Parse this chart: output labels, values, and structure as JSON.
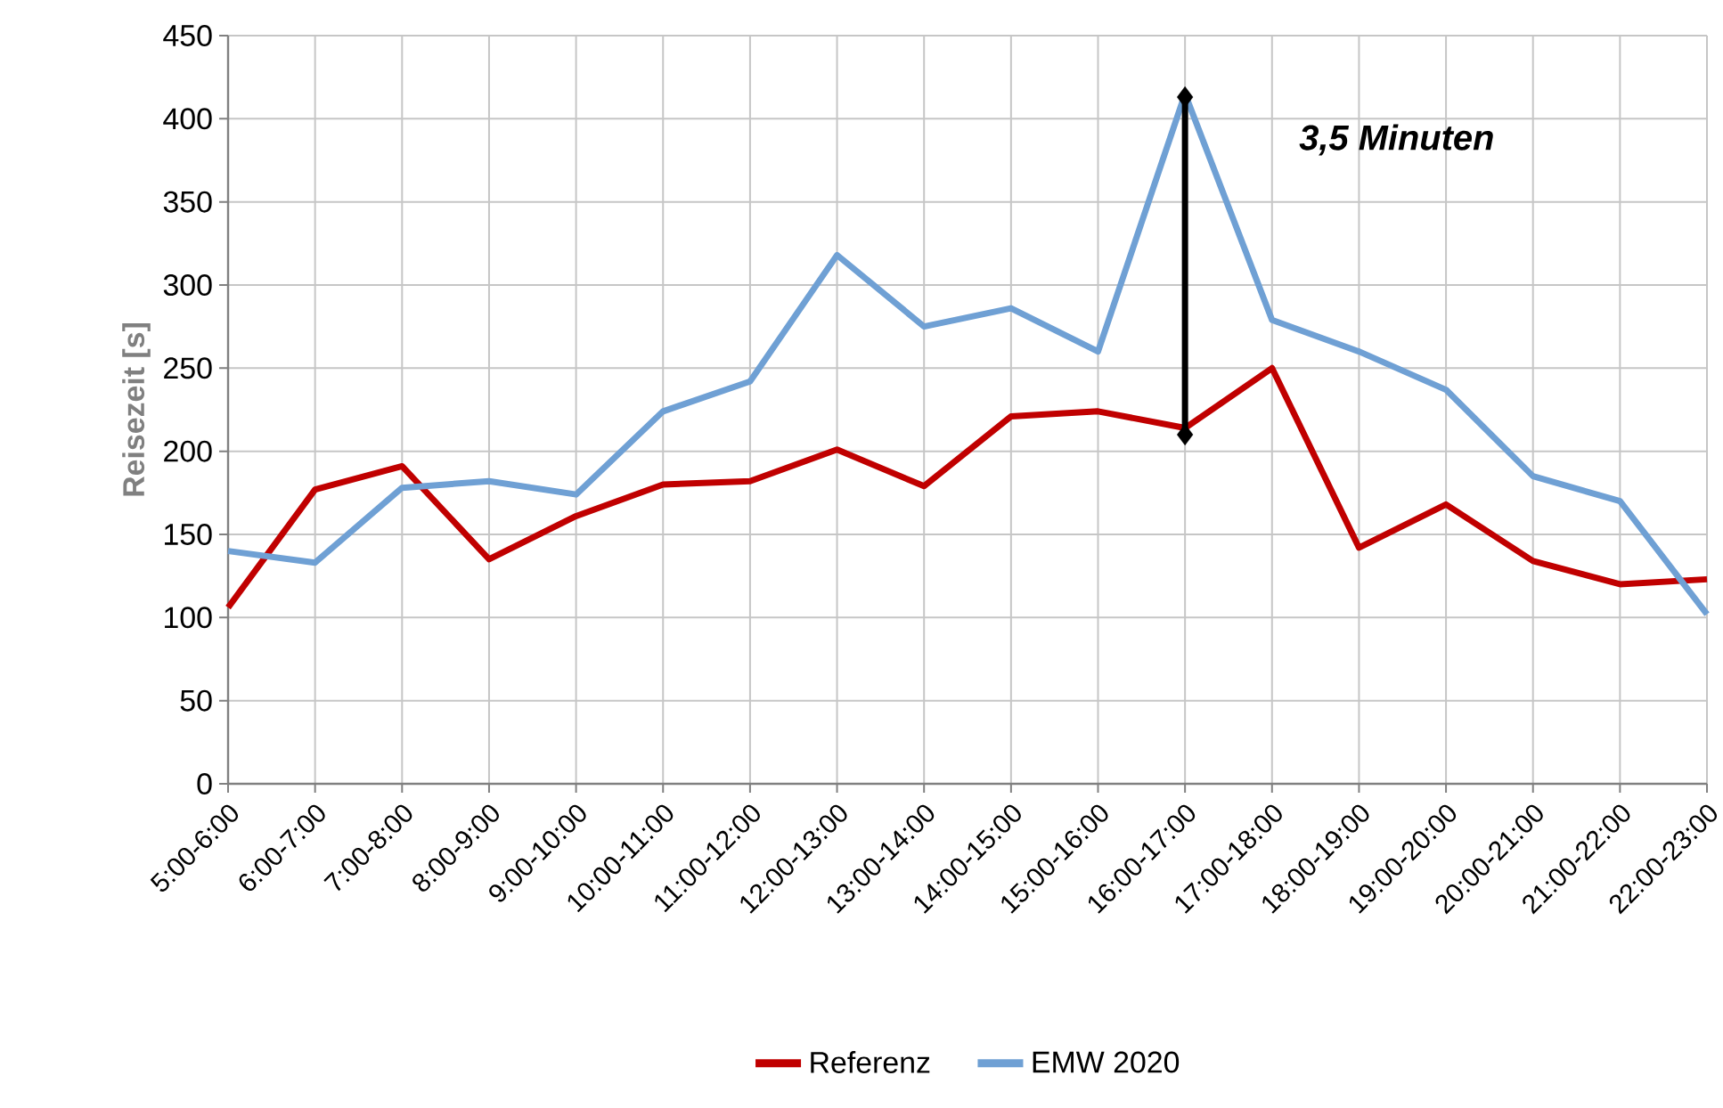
{
  "chart_data": {
    "type": "line",
    "ylabel": "Reisezeit [s]",
    "categories": [
      "5:00-6:00",
      "6:00-7:00",
      "7:00-8:00",
      "8:00-9:00",
      "9:00-10:00",
      "10:00-11:00",
      "11:00-12:00",
      "12:00-13:00",
      "13:00-14:00",
      "14:00-15:00",
      "15:00-16:00",
      "16:00-17:00",
      "17:00-18:00",
      "18:00-19:00",
      "19:00-20:00",
      "20:00-21:00",
      "21:00-22:00",
      "22:00-23:00"
    ],
    "series": [
      {
        "name": "Referenz",
        "color": "#c00000",
        "values": [
          106,
          177,
          191,
          135,
          161,
          180,
          182,
          201,
          179,
          221,
          224,
          214,
          250,
          142,
          168,
          134,
          120,
          123
        ]
      },
      {
        "name": "EMW 2020",
        "color": "#6fa0d4",
        "values": [
          140,
          133,
          178,
          182,
          174,
          224,
          242,
          318,
          275,
          286,
          260,
          415,
          279,
          260,
          237,
          185,
          170,
          102
        ]
      },
      {
        "color": "#000000",
        "x": [
          "16:00-17:00",
          "16:00-17:00"
        ],
        "values": [
          210,
          413
        ],
        "marker": "diamond"
      }
    ],
    "ylim": [
      0,
      450
    ],
    "yticks": [
      0,
      50,
      100,
      150,
      200,
      250,
      300,
      350,
      400,
      450
    ],
    "grid": true,
    "legend": "bottom",
    "marker": "none",
    "line_style": "solid",
    "annotations": [
      "3,5 Minuten"
    ]
  }
}
